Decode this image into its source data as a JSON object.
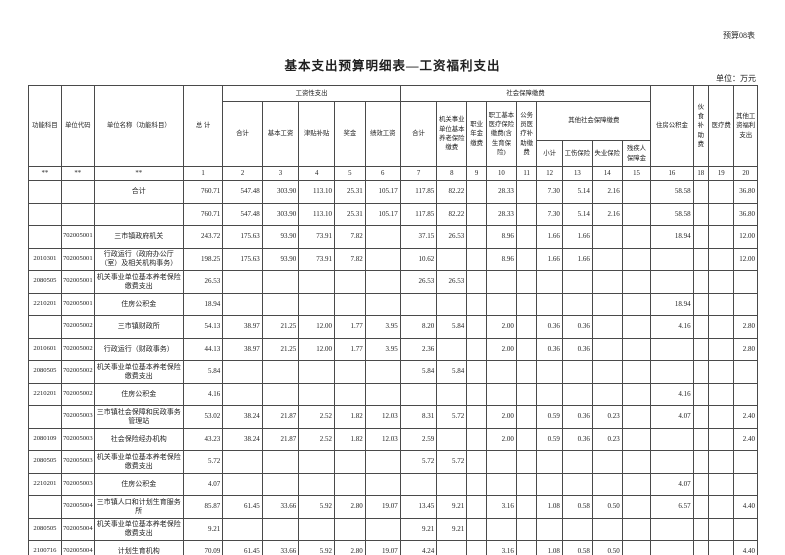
{
  "page": {
    "corner_label": "预算08表",
    "title": "基本支出预算明细表—工资福利支出",
    "unit_note": "单位：万元"
  },
  "table": {
    "header": {
      "func_subject": "功能科目",
      "unit_code": "单位代码",
      "unit_name": "单位名称（功能科目）",
      "total": "总  计",
      "wage_group": "工资性支出",
      "wage_total": "合计",
      "base_wage": "基本工资",
      "allowance": "津贴补贴",
      "bonus": "奖金",
      "perf_wage": "绩效工资",
      "social_group": "社会保障缴费",
      "social_total": "合计",
      "pension": "机关事业单位基本养老保险缴费",
      "annuity": "职业年金缴费",
      "medical_ins": "职工基本医疗保险缴费(含生育保险)",
      "civil_medical": "公务员医疗补助缴费",
      "other_social_group": "其他社会保障缴费",
      "subtotal": "小计",
      "injury_ins": "工伤保险",
      "unemploy_ins": "失业保险",
      "disability_fund": "残疾人保障金",
      "housing_fund": "住房公积金",
      "meal_subsidy": "伙食补助费",
      "medical_fee": "医疗费",
      "other_welfare": "其他工资福利支出"
    },
    "col_numbers": [
      "**",
      "**",
      "**",
      "1",
      "2",
      "3",
      "4",
      "5",
      "6",
      "7",
      "8",
      "9",
      "10",
      "11",
      "12",
      "13",
      "14",
      "15",
      "16",
      "18",
      "19",
      "20"
    ],
    "rows": [
      [
        "",
        "",
        "合计",
        "760.71",
        "547.48",
        "303.90",
        "113.10",
        "25.31",
        "105.17",
        "117.85",
        "82.22",
        "",
        "28.33",
        "",
        "7.30",
        "5.14",
        "2.16",
        "",
        "58.58",
        "",
        "",
        "36.80"
      ],
      [
        "",
        "",
        "",
        "760.71",
        "547.48",
        "303.90",
        "113.10",
        "25.31",
        "105.17",
        "117.85",
        "82.22",
        "",
        "28.33",
        "",
        "7.30",
        "5.14",
        "2.16",
        "",
        "58.58",
        "",
        "",
        "36.80"
      ],
      [
        "",
        "702005001",
        "三市镇政府机关",
        "243.72",
        "175.63",
        "93.90",
        "73.91",
        "7.82",
        "",
        "37.15",
        "26.53",
        "",
        "8.96",
        "",
        "1.66",
        "1.66",
        "",
        "",
        "18.94",
        "",
        "",
        "12.00"
      ],
      [
        "2010301",
        "702005001",
        "行政运行（政府办公厅（室）及相关机构事务）",
        "198.25",
        "175.63",
        "93.90",
        "73.91",
        "7.82",
        "",
        "10.62",
        "",
        "",
        "8.96",
        "",
        "1.66",
        "1.66",
        "",
        "",
        "",
        "",
        "",
        "12.00"
      ],
      [
        "2080505",
        "702005001",
        "机关事业单位基本养老保险缴费支出",
        "26.53",
        "",
        "",
        "",
        "",
        "",
        "26.53",
        "26.53",
        "",
        "",
        "",
        "",
        "",
        "",
        "",
        "",
        "",
        "",
        ""
      ],
      [
        "2210201",
        "702005001",
        "住房公积金",
        "18.94",
        "",
        "",
        "",
        "",
        "",
        "",
        "",
        "",
        "",
        "",
        "",
        "",
        "",
        "",
        "18.94",
        "",
        "",
        ""
      ],
      [
        "",
        "702005002",
        "三市镇财政所",
        "54.13",
        "38.97",
        "21.25",
        "12.00",
        "1.77",
        "3.95",
        "8.20",
        "5.84",
        "",
        "2.00",
        "",
        "0.36",
        "0.36",
        "",
        "",
        "4.16",
        "",
        "",
        "2.80"
      ],
      [
        "2010601",
        "702005002",
        "行政运行（财政事务）",
        "44.13",
        "38.97",
        "21.25",
        "12.00",
        "1.77",
        "3.95",
        "2.36",
        "",
        "",
        "2.00",
        "",
        "0.36",
        "0.36",
        "",
        "",
        "",
        "",
        "",
        "2.80"
      ],
      [
        "2080505",
        "702005002",
        "机关事业单位基本养老保险缴费支出",
        "5.84",
        "",
        "",
        "",
        "",
        "",
        "5.84",
        "5.84",
        "",
        "",
        "",
        "",
        "",
        "",
        "",
        "",
        "",
        "",
        ""
      ],
      [
        "2210201",
        "702005002",
        "住房公积金",
        "4.16",
        "",
        "",
        "",
        "",
        "",
        "",
        "",
        "",
        "",
        "",
        "",
        "",
        "",
        "",
        "4.16",
        "",
        "",
        ""
      ],
      [
        "",
        "702005003",
        "三市镇社会保障和民政事务管理站",
        "53.02",
        "38.24",
        "21.87",
        "2.52",
        "1.82",
        "12.03",
        "8.31",
        "5.72",
        "",
        "2.00",
        "",
        "0.59",
        "0.36",
        "0.23",
        "",
        "4.07",
        "",
        "",
        "2.40"
      ],
      [
        "2080109",
        "702005003",
        "社会保险经办机构",
        "43.23",
        "38.24",
        "21.87",
        "2.52",
        "1.82",
        "12.03",
        "2.59",
        "",
        "",
        "2.00",
        "",
        "0.59",
        "0.36",
        "0.23",
        "",
        "",
        "",
        "",
        "2.40"
      ],
      [
        "2080505",
        "702005003",
        "机关事业单位基本养老保险缴费支出",
        "5.72",
        "",
        "",
        "",
        "",
        "",
        "5.72",
        "5.72",
        "",
        "",
        "",
        "",
        "",
        "",
        "",
        "",
        "",
        "",
        ""
      ],
      [
        "2210201",
        "702005003",
        "住房公积金",
        "4.07",
        "",
        "",
        "",
        "",
        "",
        "",
        "",
        "",
        "",
        "",
        "",
        "",
        "",
        "",
        "4.07",
        "",
        "",
        ""
      ],
      [
        "",
        "702005004",
        "三市镇人口和计划生育服务所",
        "85.87",
        "61.45",
        "33.66",
        "5.92",
        "2.80",
        "19.07",
        "13.45",
        "9.21",
        "",
        "3.16",
        "",
        "1.08",
        "0.58",
        "0.50",
        "",
        "6.57",
        "",
        "",
        "4.40"
      ],
      [
        "2080505",
        "702005004",
        "机关事业单位基本养老保险缴费支出",
        "9.21",
        "",
        "",
        "",
        "",
        "",
        "9.21",
        "9.21",
        "",
        "",
        "",
        "",
        "",
        "",
        "",
        "",
        "",
        "",
        ""
      ],
      [
        "2100716",
        "702005004",
        "计划生育机构",
        "70.09",
        "61.45",
        "33.66",
        "5.92",
        "2.80",
        "19.07",
        "4.24",
        "",
        "",
        "3.16",
        "",
        "1.08",
        "0.58",
        "0.50",
        "",
        "",
        "",
        "",
        "4.40"
      ]
    ]
  }
}
